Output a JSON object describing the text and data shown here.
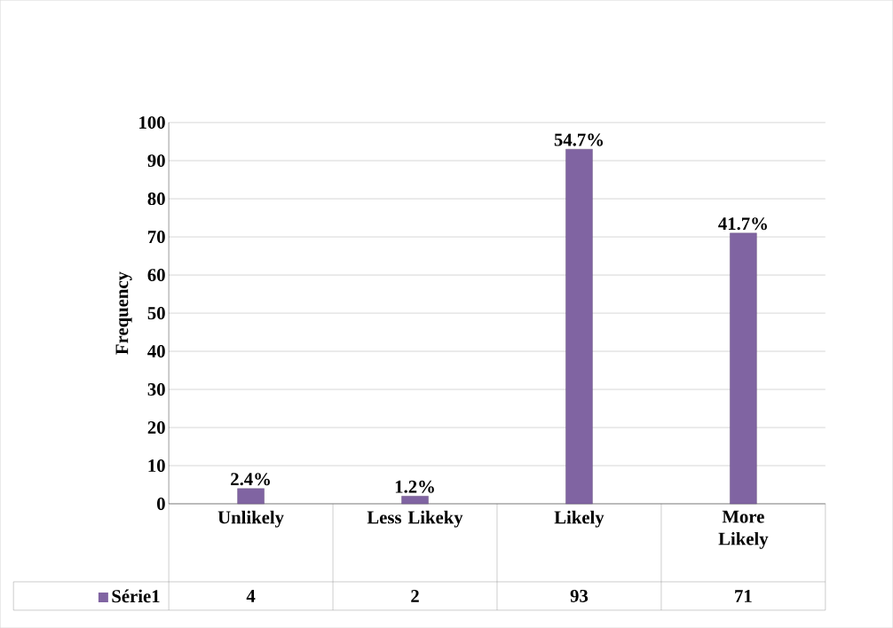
{
  "chart_data": {
    "type": "bar",
    "ylabel": "Frequency",
    "categories": [
      "Unlikely",
      "Less Likeky",
      "Likely",
      "More Likely"
    ],
    "series": [
      {
        "name": "Série1",
        "color": "#8064a2",
        "values": [
          4,
          2,
          93,
          71
        ]
      }
    ],
    "annotations": [
      {
        "text": "2.4%",
        "x": "Unlikely",
        "y": 4
      },
      {
        "text": "1.2%",
        "x": "Less Likeky",
        "y": 2
      },
      {
        "text": "54.7%",
        "x": "Likely",
        "y": 93
      },
      {
        "text": "41.7%",
        "x": "More Likely",
        "y": 71
      }
    ],
    "ylim": [
      0,
      100
    ],
    "yticks": [
      0,
      10,
      20,
      30,
      40,
      50,
      60,
      70,
      80,
      90,
      100
    ],
    "grid": "y",
    "data_labels": true,
    "legend": "bottom left"
  }
}
